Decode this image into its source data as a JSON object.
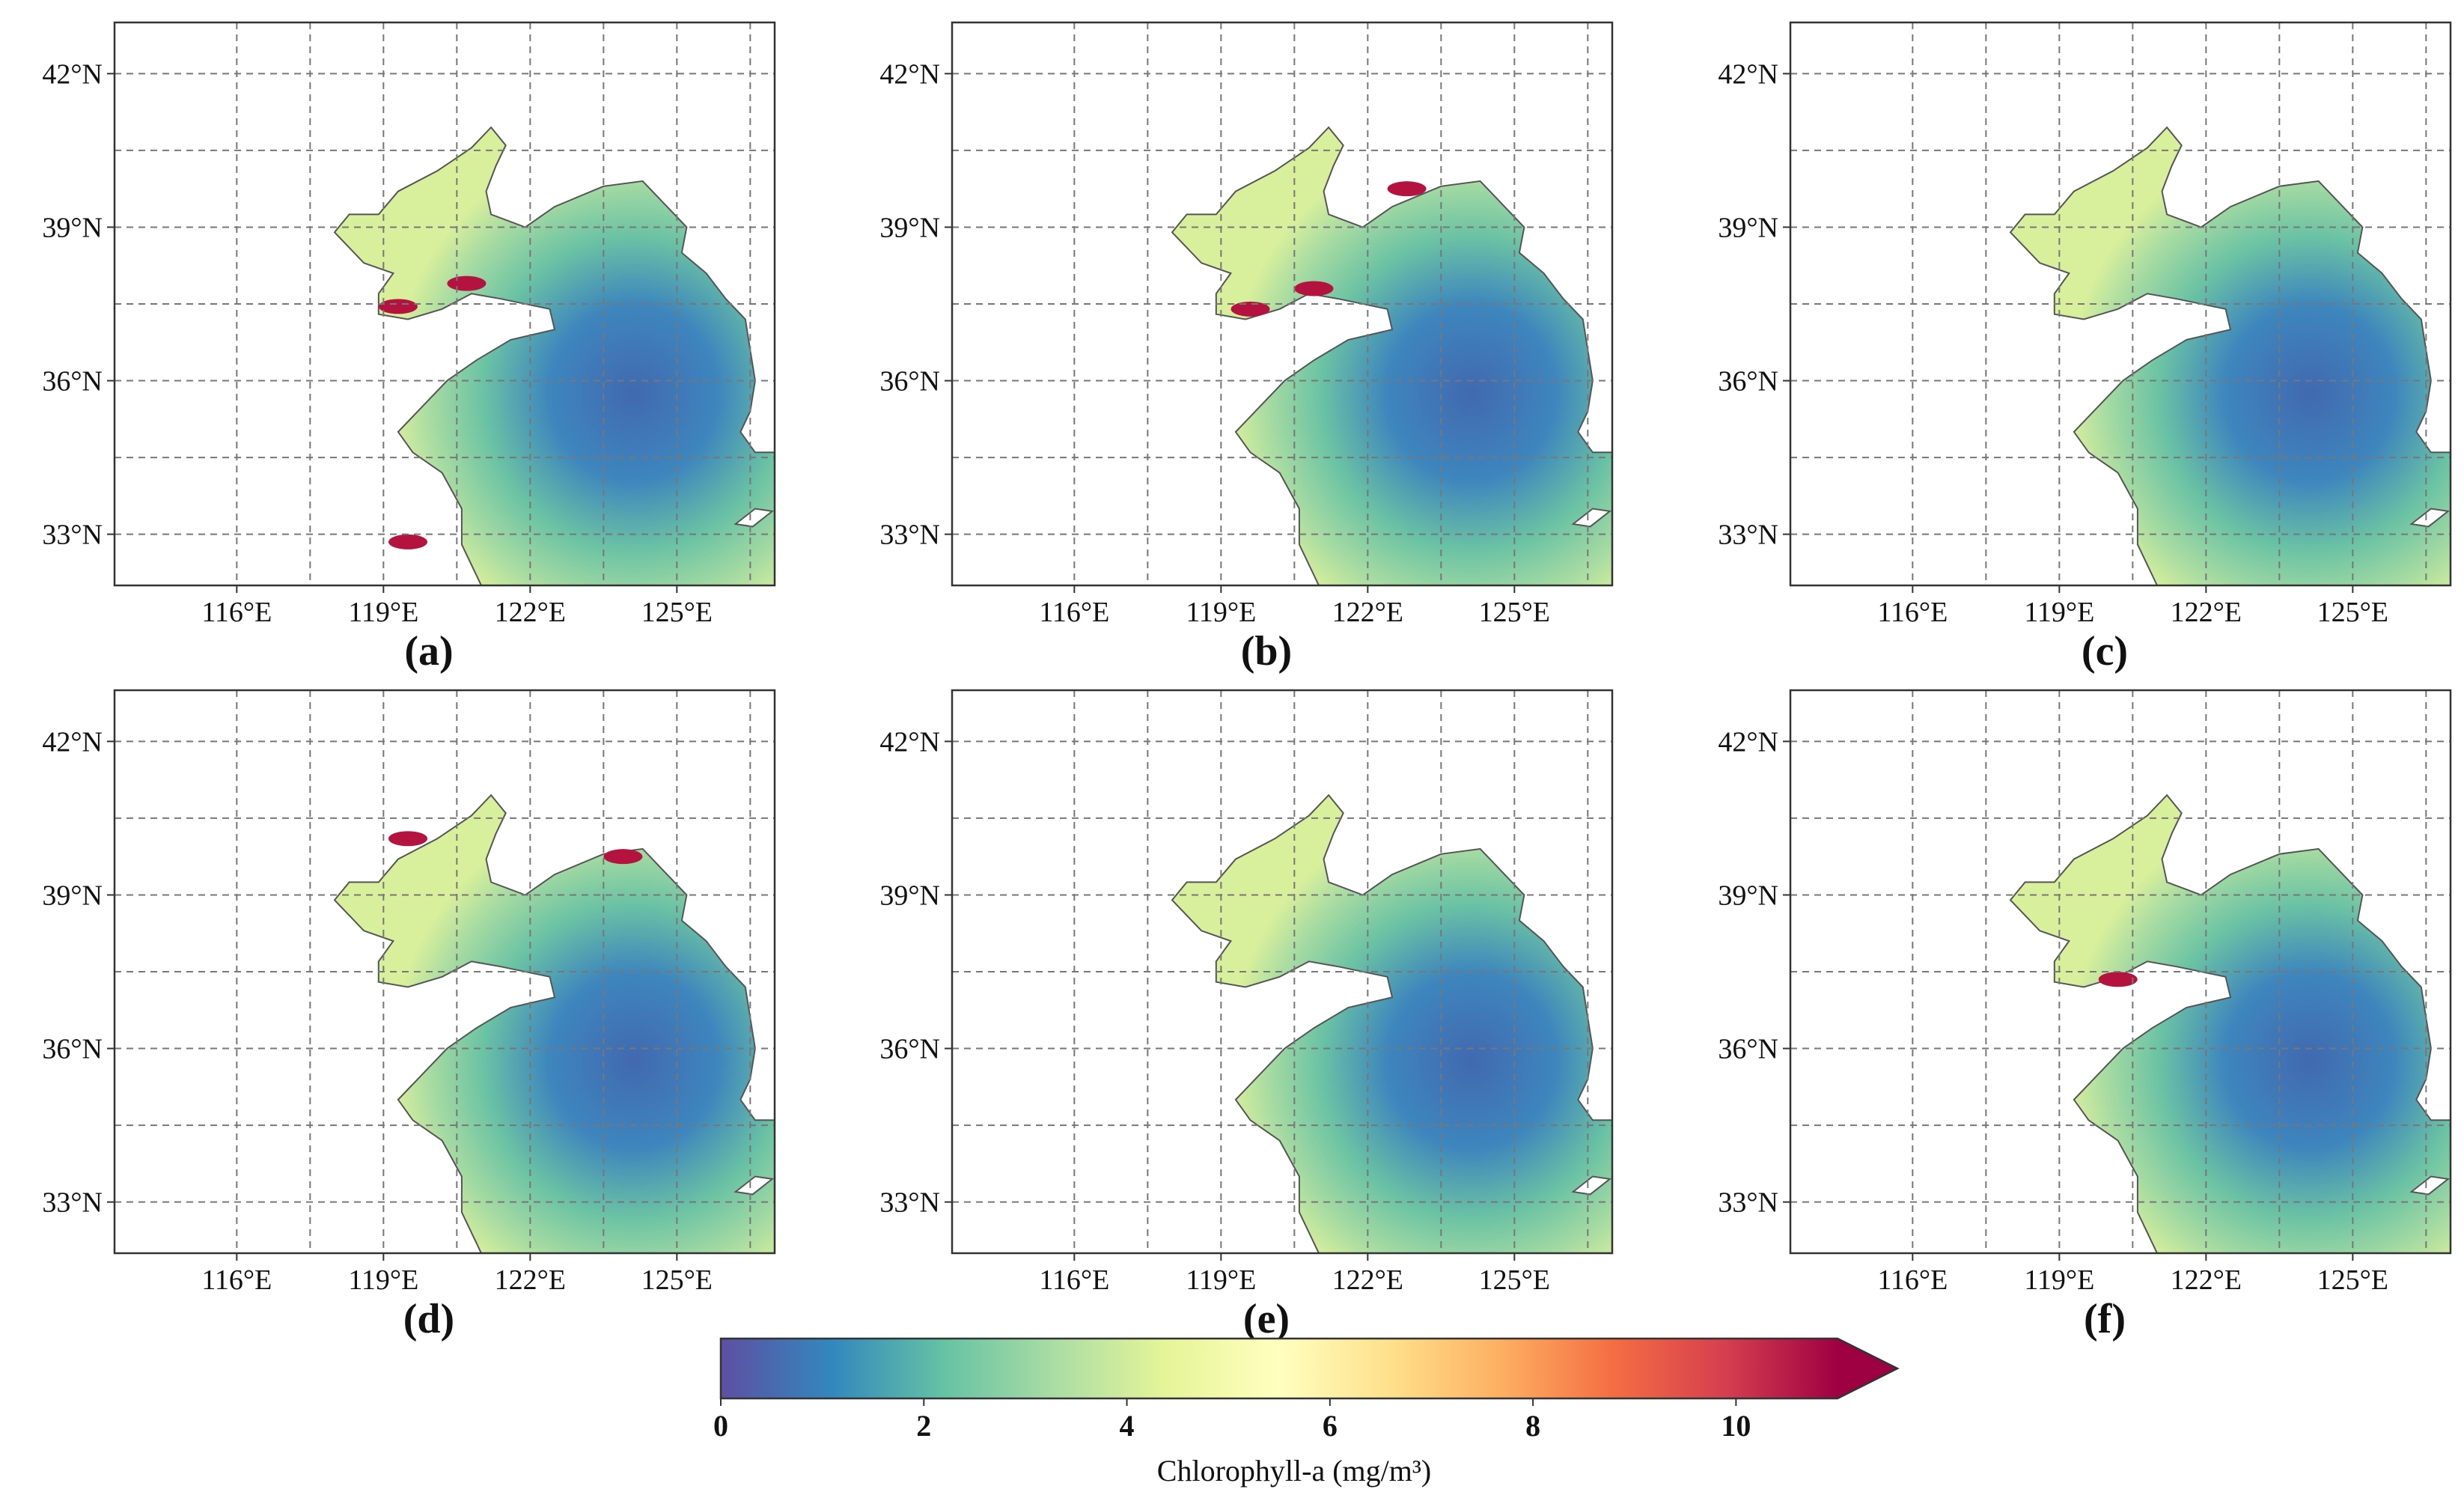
{
  "panels": [
    {
      "id": "a",
      "caption": "(a)"
    },
    {
      "id": "b",
      "caption": "(b)"
    },
    {
      "id": "c",
      "caption": "(c)"
    },
    {
      "id": "d",
      "caption": "(d)"
    },
    {
      "id": "e",
      "caption": "(e)"
    },
    {
      "id": "f",
      "caption": "(f)"
    }
  ],
  "map": {
    "lon_range": [
      113.5,
      127
    ],
    "lat_range": [
      32,
      43
    ],
    "lon_ticks": [
      {
        "value": 116,
        "label": "116°E"
      },
      {
        "value": 119,
        "label": "119°E"
      },
      {
        "value": 122,
        "label": "122°E"
      },
      {
        "value": 125,
        "label": "125°E"
      }
    ],
    "lat_ticks": [
      {
        "value": 33,
        "label": "33°N"
      },
      {
        "value": 36,
        "label": "36°N"
      },
      {
        "value": 39,
        "label": "39°N"
      },
      {
        "value": 42,
        "label": "42°N"
      }
    ],
    "gridlines": "dashed",
    "land_color": "#ffffff",
    "coast_color": "#555555"
  },
  "colorbar": {
    "label": "Chlorophyll-a (mg/m³)",
    "min": 0,
    "max": 11,
    "extend": "max",
    "ticks": [
      {
        "value": 0,
        "label": "0"
      },
      {
        "value": 2,
        "label": "2"
      },
      {
        "value": 4,
        "label": "4"
      },
      {
        "value": 6,
        "label": "6"
      },
      {
        "value": 8,
        "label": "8"
      },
      {
        "value": 10,
        "label": "10"
      }
    ],
    "colormap": "Spectral_r",
    "stops": [
      "#5e4fa2",
      "#3288bd",
      "#66c2a5",
      "#abdda4",
      "#e6f598",
      "#ffffbf",
      "#fee08b",
      "#fdae61",
      "#f46d43",
      "#d53e4f",
      "#9e0142"
    ]
  }
}
